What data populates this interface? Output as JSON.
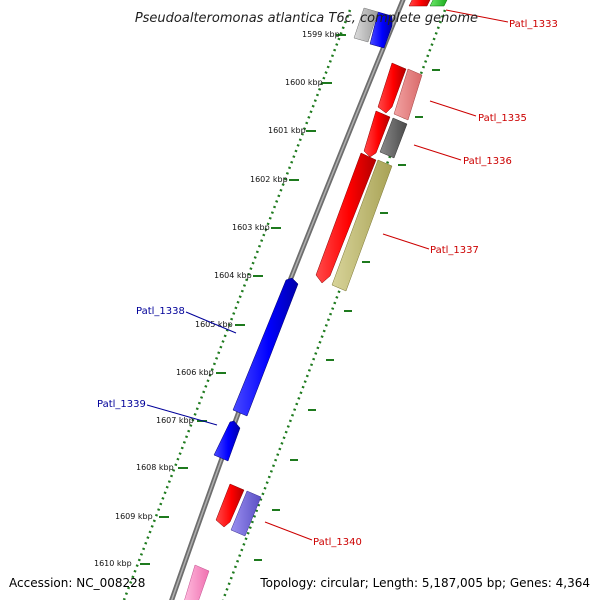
{
  "title": "Pseudoalteromonas atlantica T6c, complete genome",
  "footer": {
    "accession": "Accession: NC_008228",
    "summary": "Topology: circular; Length: 5,187,005 bp; Genes: 4,364"
  },
  "colors": {
    "backbone": "#8a8a8a",
    "ruler": "#1e7a1e",
    "label_forward": "#cc0000",
    "label_reverse": "#000099"
  },
  "ticks": [
    "1599 kbp",
    "1600 kbp",
    "1601 kbp",
    "1602 kbp",
    "1603 kbp",
    "1604 kbp",
    "1605 kbp",
    "1606 kbp",
    "1607 kbp",
    "1608 kbp",
    "1609 kbp",
    "1610 kbp"
  ],
  "gene_labels": {
    "patl_1333": "Patl_1333",
    "patl_1335": "Patl_1335",
    "patl_1336": "Patl_1336",
    "patl_1337": "Patl_1337",
    "patl_1338": "Patl_1338",
    "patl_1339": "Patl_1339",
    "patl_1340": "Patl_1340"
  }
}
